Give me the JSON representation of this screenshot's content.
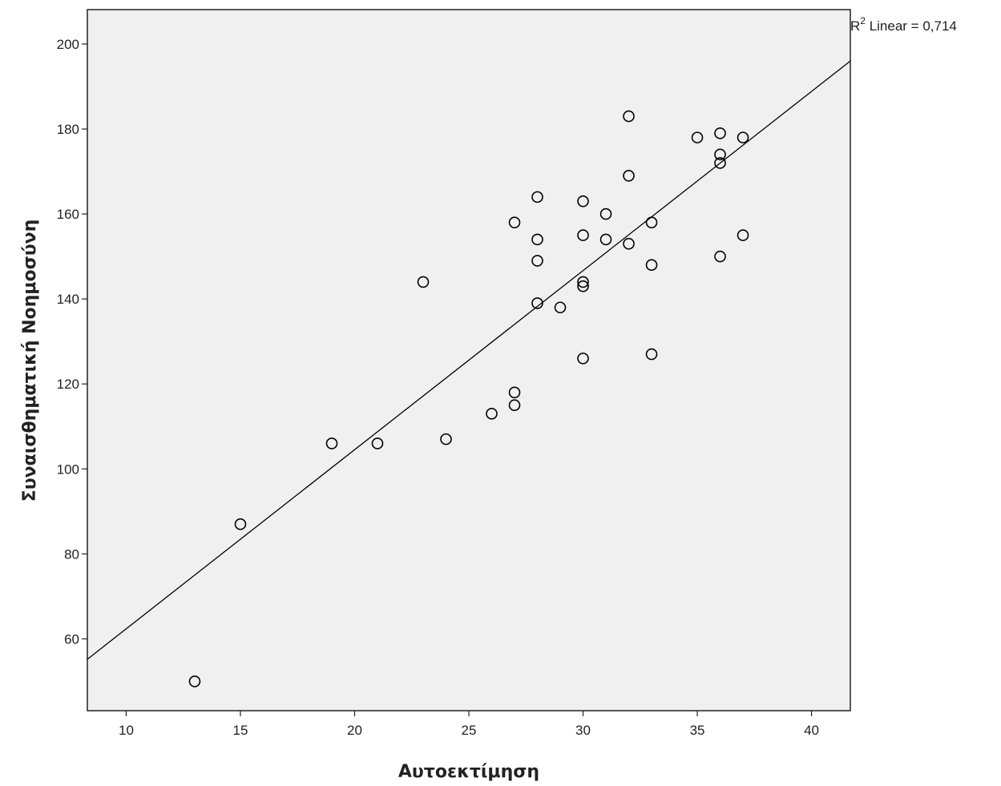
{
  "chart_data": {
    "type": "scatter",
    "xlabel": "Αυτοεκτίμηση",
    "ylabel": "Συναισθηματική Νοημοσύνη",
    "xlim": [
      8.3,
      41.7
    ],
    "ylim": [
      43.1,
      208.1
    ],
    "x_ticks": [
      10,
      15,
      20,
      25,
      30,
      35,
      40
    ],
    "y_ticks": [
      60,
      80,
      100,
      120,
      140,
      160,
      180,
      200
    ],
    "grid": false,
    "points": [
      {
        "x": 13,
        "y": 50
      },
      {
        "x": 15,
        "y": 87
      },
      {
        "x": 19,
        "y": 106
      },
      {
        "x": 21,
        "y": 106
      },
      {
        "x": 23,
        "y": 144
      },
      {
        "x": 24,
        "y": 107
      },
      {
        "x": 26,
        "y": 113
      },
      {
        "x": 27,
        "y": 118
      },
      {
        "x": 27,
        "y": 115
      },
      {
        "x": 27,
        "y": 158
      },
      {
        "x": 28,
        "y": 164
      },
      {
        "x": 28,
        "y": 154
      },
      {
        "x": 28,
        "y": 149
      },
      {
        "x": 28,
        "y": 139
      },
      {
        "x": 29,
        "y": 138
      },
      {
        "x": 30,
        "y": 163
      },
      {
        "x": 30,
        "y": 155
      },
      {
        "x": 30,
        "y": 144
      },
      {
        "x": 30,
        "y": 143
      },
      {
        "x": 30,
        "y": 126
      },
      {
        "x": 31,
        "y": 160
      },
      {
        "x": 31,
        "y": 154
      },
      {
        "x": 32,
        "y": 183
      },
      {
        "x": 32,
        "y": 169
      },
      {
        "x": 32,
        "y": 153
      },
      {
        "x": 33,
        "y": 158
      },
      {
        "x": 33,
        "y": 148
      },
      {
        "x": 33,
        "y": 127
      },
      {
        "x": 35,
        "y": 178
      },
      {
        "x": 36,
        "y": 179
      },
      {
        "x": 36,
        "y": 174
      },
      {
        "x": 36,
        "y": 172
      },
      {
        "x": 36,
        "y": 150
      },
      {
        "x": 37,
        "y": 178
      },
      {
        "x": 37,
        "y": 155
      }
    ],
    "fit_line": {
      "x": [
        8.3,
        41.7
      ],
      "y": [
        55.2,
        196.0
      ]
    },
    "annotation": {
      "base": "R",
      "sup": "2",
      "text": " Linear = 0,714"
    },
    "colors": {
      "plot_bg": "#f0f0f0",
      "marker": "#000000",
      "line": "#000000"
    }
  }
}
